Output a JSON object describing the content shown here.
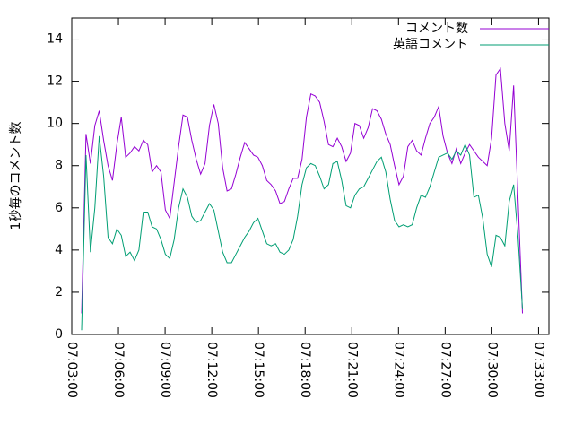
{
  "chart_data": {
    "type": "line",
    "y_label": "1秒毎のコメント数",
    "x": [
      "07:03:38",
      "07:03:55",
      "07:04:12",
      "07:04:29",
      "07:04:46",
      "07:05:03",
      "07:05:20",
      "07:05:37",
      "07:05:54",
      "07:06:11",
      "07:06:28",
      "07:06:45",
      "07:07:02",
      "07:07:19",
      "07:07:36",
      "07:07:53",
      "07:08:10",
      "07:08:27",
      "07:08:44",
      "07:09:01",
      "07:09:18",
      "07:09:35",
      "07:09:52",
      "07:10:09",
      "07:10:26",
      "07:10:43",
      "07:11:00",
      "07:11:17",
      "07:11:34",
      "07:11:51",
      "07:12:08",
      "07:12:25",
      "07:12:42",
      "07:12:59",
      "07:13:16",
      "07:13:33",
      "07:13:50",
      "07:14:07",
      "07:14:24",
      "07:14:41",
      "07:14:58",
      "07:15:15",
      "07:15:32",
      "07:15:49",
      "07:16:06",
      "07:16:23",
      "07:16:40",
      "07:16:57",
      "07:17:14",
      "07:17:31",
      "07:17:48",
      "07:18:05",
      "07:18:22",
      "07:18:39",
      "07:18:56",
      "07:19:13",
      "07:19:30",
      "07:19:47",
      "07:20:04",
      "07:20:21",
      "07:20:38",
      "07:20:55",
      "07:21:12",
      "07:21:29",
      "07:21:46",
      "07:22:03",
      "07:22:20",
      "07:22:37",
      "07:22:54",
      "07:23:11",
      "07:23:28",
      "07:23:45",
      "07:24:02",
      "07:24:19",
      "07:24:36",
      "07:24:53",
      "07:25:10",
      "07:25:27",
      "07:25:44",
      "07:26:01",
      "07:26:18",
      "07:26:35",
      "07:26:52",
      "07:27:09",
      "07:27:26",
      "07:27:43",
      "07:28:00",
      "07:28:17",
      "07:28:34",
      "07:28:51",
      "07:29:08",
      "07:29:25",
      "07:29:42",
      "07:29:59",
      "07:30:16",
      "07:30:33",
      "07:30:50",
      "07:31:07",
      "07:31:24",
      "07:31:41",
      "07:31:58"
    ],
    "series": [
      {
        "name": "コメント数",
        "color": "#9400d3",
        "values": [
          1.0,
          9.5,
          8.1,
          9.9,
          10.6,
          9.2,
          8.0,
          7.3,
          9.0,
          10.3,
          8.4,
          8.6,
          8.9,
          8.7,
          9.2,
          9.0,
          7.7,
          8.0,
          7.7,
          5.9,
          5.5,
          7.2,
          8.9,
          10.4,
          10.3,
          9.2,
          8.3,
          7.6,
          8.1,
          9.9,
          10.9,
          10.0,
          7.9,
          6.8,
          6.9,
          7.6,
          8.4,
          9.1,
          8.8,
          8.5,
          8.4,
          8.0,
          7.3,
          7.1,
          6.8,
          6.2,
          6.3,
          6.9,
          7.4,
          7.4,
          8.3,
          10.3,
          11.4,
          11.3,
          11.0,
          10.1,
          9.0,
          8.9,
          9.3,
          8.9,
          8.2,
          8.6,
          10.0,
          9.9,
          9.3,
          9.8,
          10.7,
          10.6,
          10.2,
          9.5,
          9.0,
          8.0,
          7.1,
          7.5,
          8.9,
          9.2,
          8.7,
          8.5,
          9.3,
          10.0,
          10.3,
          10.8,
          9.4,
          8.6,
          8.1,
          8.8,
          8.1,
          8.6,
          9.0,
          8.7,
          8.4,
          8.2,
          8.0,
          9.3,
          12.3,
          12.6,
          10.0,
          8.7,
          11.8,
          6.4,
          1.0
        ]
      },
      {
        "name": "英語コメント",
        "color": "#009e73",
        "values": [
          0.2,
          8.5,
          3.9,
          6.0,
          9.4,
          7.5,
          4.6,
          4.3,
          5.0,
          4.7,
          3.7,
          3.9,
          3.5,
          4.0,
          5.8,
          5.8,
          5.1,
          5.0,
          4.5,
          3.8,
          3.6,
          4.5,
          6.0,
          6.9,
          6.5,
          5.6,
          5.3,
          5.4,
          5.8,
          6.2,
          5.9,
          4.9,
          3.9,
          3.4,
          3.4,
          3.8,
          4.2,
          4.6,
          4.9,
          5.3,
          5.5,
          4.9,
          4.3,
          4.2,
          4.3,
          3.9,
          3.8,
          4.0,
          4.5,
          5.6,
          7.1,
          7.9,
          8.1,
          8.0,
          7.5,
          6.9,
          7.1,
          8.1,
          8.2,
          7.3,
          6.1,
          6.0,
          6.6,
          6.9,
          7.0,
          7.4,
          7.8,
          8.2,
          8.4,
          7.7,
          6.4,
          5.4,
          5.1,
          5.2,
          5.1,
          5.2,
          6.0,
          6.6,
          6.5,
          7.0,
          7.7,
          8.4,
          8.5,
          8.6,
          8.3,
          8.7,
          8.5,
          9.0,
          8.5,
          6.5,
          6.6,
          5.5,
          3.8,
          3.2,
          4.7,
          4.6,
          4.2,
          6.3,
          7.1,
          4.6,
          1.2
        ]
      }
    ],
    "xlim": [
      "07:03:00",
      "07:33:40"
    ],
    "xticks": [
      "07:03:00",
      "07:06:00",
      "07:09:00",
      "07:12:00",
      "07:15:00",
      "07:18:00",
      "07:21:00",
      "07:24:00",
      "07:27:00",
      "07:30:00",
      "07:33:00"
    ],
    "ylim": [
      0,
      15
    ],
    "yticks": [
      0,
      2,
      4,
      6,
      8,
      10,
      12,
      14
    ],
    "legend": "top-right"
  }
}
